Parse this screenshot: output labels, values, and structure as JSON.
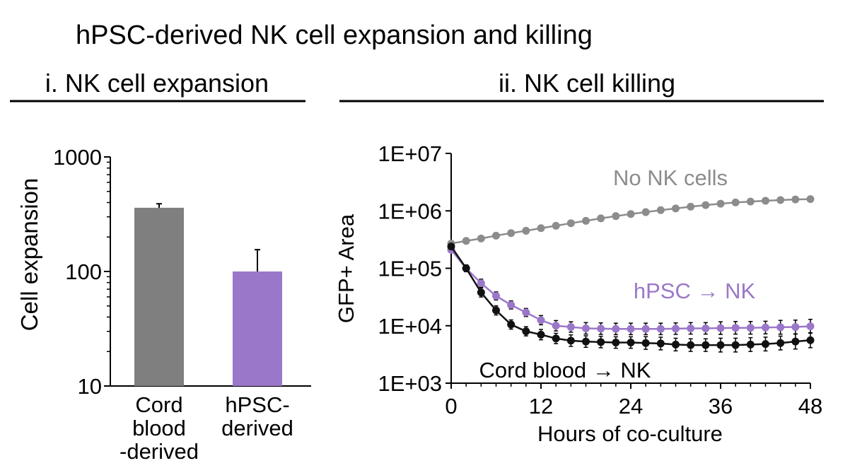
{
  "figure": {
    "title": "hPSC-derived NK cell expansion and killing"
  },
  "chart_data": [
    {
      "type": "bar",
      "title": "i. NK cell expansion",
      "ylabel": "Cell expansion",
      "yscale": "log",
      "ylim": [
        10,
        1000
      ],
      "yticks": [
        "1000",
        "100",
        "10"
      ],
      "yticks_values": [
        1000,
        100,
        10
      ],
      "categories": [
        [
          "Cord",
          "blood",
          "-derived"
        ],
        [
          "hPSC-",
          "derived"
        ]
      ],
      "values": [
        360,
        100
      ],
      "error_upper": [
        390,
        155
      ],
      "colors": [
        "#7f7f7f",
        "#9b77c9"
      ]
    },
    {
      "type": "line",
      "title": "ii. NK cell killing",
      "xlabel": "Hours of co-culture",
      "ylabel": "GFP+ Area",
      "yscale": "log",
      "ylim": [
        1000,
        10000000
      ],
      "xlim": [
        0,
        48
      ],
      "xticks": [
        "0",
        "12",
        "24",
        "36",
        "48"
      ],
      "xticks_values": [
        0,
        12,
        24,
        36,
        48
      ],
      "yticks": [
        "1E+07",
        "1E+06",
        "1E+05",
        "1E+04",
        "1E+03"
      ],
      "yticks_values": [
        10000000,
        1000000,
        100000,
        10000,
        1000
      ],
      "x": [
        0,
        2,
        4,
        6,
        8,
        10,
        12,
        14,
        16,
        18,
        20,
        22,
        24,
        26,
        28,
        30,
        32,
        34,
        36,
        38,
        40,
        42,
        44,
        46,
        48
      ],
      "series": [
        {
          "name": "No NK cells",
          "color": "#8c8c8c",
          "values": [
            270000,
            300000,
            330000,
            370000,
            410000,
            450000,
            500000,
            550000,
            610000,
            670000,
            740000,
            810000,
            880000,
            950000,
            1030000,
            1100000,
            1180000,
            1260000,
            1330000,
            1400000,
            1450000,
            1500000,
            1540000,
            1580000,
            1600000
          ],
          "error": null
        },
        {
          "name": "hPSC → NK",
          "color": "#9b77c9",
          "values": [
            210000,
            100000,
            55000,
            33000,
            23000,
            17000,
            12500,
            10000,
            9500,
            9000,
            8900,
            8800,
            8800,
            8800,
            8800,
            8900,
            9000,
            9000,
            9100,
            9200,
            9200,
            9300,
            9400,
            9500,
            9800
          ],
          "error": [
            0.05,
            0.05,
            0.07,
            0.07,
            0.07,
            0.07,
            0.08,
            0.09,
            0.09,
            0.1,
            0.1,
            0.1,
            0.1,
            0.1,
            0.1,
            0.1,
            0.1,
            0.1,
            0.11,
            0.11,
            0.11,
            0.11,
            0.12,
            0.12,
            0.12
          ]
        },
        {
          "name": "Cord blood → NK",
          "color": "#111111",
          "values": [
            240000,
            100000,
            38000,
            18500,
            10500,
            8000,
            7000,
            6000,
            5500,
            5300,
            5200,
            5100,
            5100,
            5000,
            4900,
            4700,
            4600,
            4600,
            4600,
            4600,
            4700,
            4800,
            5000,
            5300,
            5600
          ],
          "error": [
            0.05,
            0.06,
            0.08,
            0.08,
            0.08,
            0.08,
            0.09,
            0.09,
            0.1,
            0.1,
            0.1,
            0.1,
            0.1,
            0.11,
            0.11,
            0.11,
            0.11,
            0.11,
            0.12,
            0.12,
            0.12,
            0.12,
            0.12,
            0.13,
            0.13
          ]
        }
      ]
    }
  ]
}
